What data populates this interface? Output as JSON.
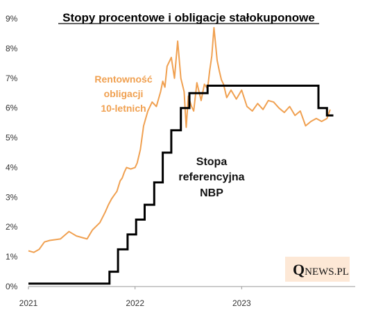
{
  "chart_data": {
    "type": "line",
    "title": "Stopy procentowe i obligacje stałokuponowe",
    "xlabel": "",
    "ylabel": "",
    "x_ticks": [
      "2021",
      "2022",
      "2023"
    ],
    "y_ticks": [
      "0%",
      "1%",
      "2%",
      "3%",
      "4%",
      "5%",
      "6%",
      "7%",
      "8%",
      "9%"
    ],
    "ylim": [
      0,
      9
    ],
    "xlim": [
      2021.0,
      2024.0
    ],
    "grid": false,
    "colors": {
      "bond": "#F0A050",
      "rate": "#000000"
    },
    "annotations": {
      "bond": [
        "Rentowność",
        "obligacji",
        "10-letnich"
      ],
      "rate": [
        "Stopa",
        "referencyjna",
        "NBP"
      ]
    },
    "series": [
      {
        "name": "Rentowność obligacji 10-letnich",
        "x": [
          2021.0,
          2021.05,
          2021.1,
          2021.15,
          2021.2,
          2021.3,
          2021.38,
          2021.45,
          2021.55,
          2021.6,
          2021.67,
          2021.72,
          2021.75,
          2021.78,
          2021.8,
          2021.83,
          2021.86,
          2021.88,
          2021.9,
          2021.92,
          2021.96,
          2022.0,
          2022.02,
          2022.05,
          2022.08,
          2022.12,
          2022.16,
          2022.2,
          2022.24,
          2022.26,
          2022.28,
          2022.3,
          2022.34,
          2022.37,
          2022.4,
          2022.43,
          2022.46,
          2022.48,
          2022.5,
          2022.53,
          2022.55,
          2022.58,
          2022.62,
          2022.65,
          2022.68,
          2022.7,
          2022.72,
          2022.74,
          2022.77,
          2022.79,
          2022.81,
          2022.83,
          2022.86,
          2022.9,
          2022.95,
          2023.0,
          2023.05,
          2023.1,
          2023.15,
          2023.2,
          2023.25,
          2023.3,
          2023.35,
          2023.4,
          2023.45,
          2023.5,
          2023.55,
          2023.6,
          2023.65,
          2023.7,
          2023.75,
          2023.8,
          2023.83
        ],
        "values": [
          1.2,
          1.15,
          1.25,
          1.5,
          1.55,
          1.6,
          1.85,
          1.7,
          1.6,
          1.9,
          2.15,
          2.5,
          2.75,
          2.95,
          3.05,
          3.2,
          3.55,
          3.65,
          3.85,
          4.0,
          3.95,
          4.0,
          4.15,
          4.6,
          5.4,
          5.9,
          6.2,
          6.05,
          6.55,
          6.9,
          6.7,
          7.4,
          7.7,
          7.0,
          8.25,
          7.0,
          6.55,
          5.35,
          6.4,
          6.05,
          5.9,
          6.85,
          6.25,
          6.8,
          6.65,
          7.25,
          7.75,
          8.7,
          7.6,
          7.25,
          6.95,
          6.8,
          6.35,
          6.6,
          6.3,
          6.6,
          6.05,
          5.9,
          6.15,
          5.95,
          6.25,
          6.2,
          6.0,
          5.85,
          6.05,
          5.75,
          5.9,
          5.4,
          5.55,
          5.65,
          5.55,
          5.65,
          5.95
        ]
      },
      {
        "name": "Stopa referencyjna NBP",
        "step": true,
        "x": [
          2021.0,
          2021.76,
          2021.84,
          2021.93,
          2022.01,
          2022.09,
          2022.18,
          2022.26,
          2022.34,
          2022.43,
          2022.51,
          2022.68,
          2022.76,
          2023.72,
          2023.8
        ],
        "values": [
          0.1,
          0.5,
          1.25,
          1.75,
          2.25,
          2.75,
          3.5,
          4.5,
          5.25,
          6.0,
          6.5,
          6.75,
          6.75,
          6.0,
          5.75
        ]
      }
    ],
    "logo": "QNEWS.PL"
  }
}
